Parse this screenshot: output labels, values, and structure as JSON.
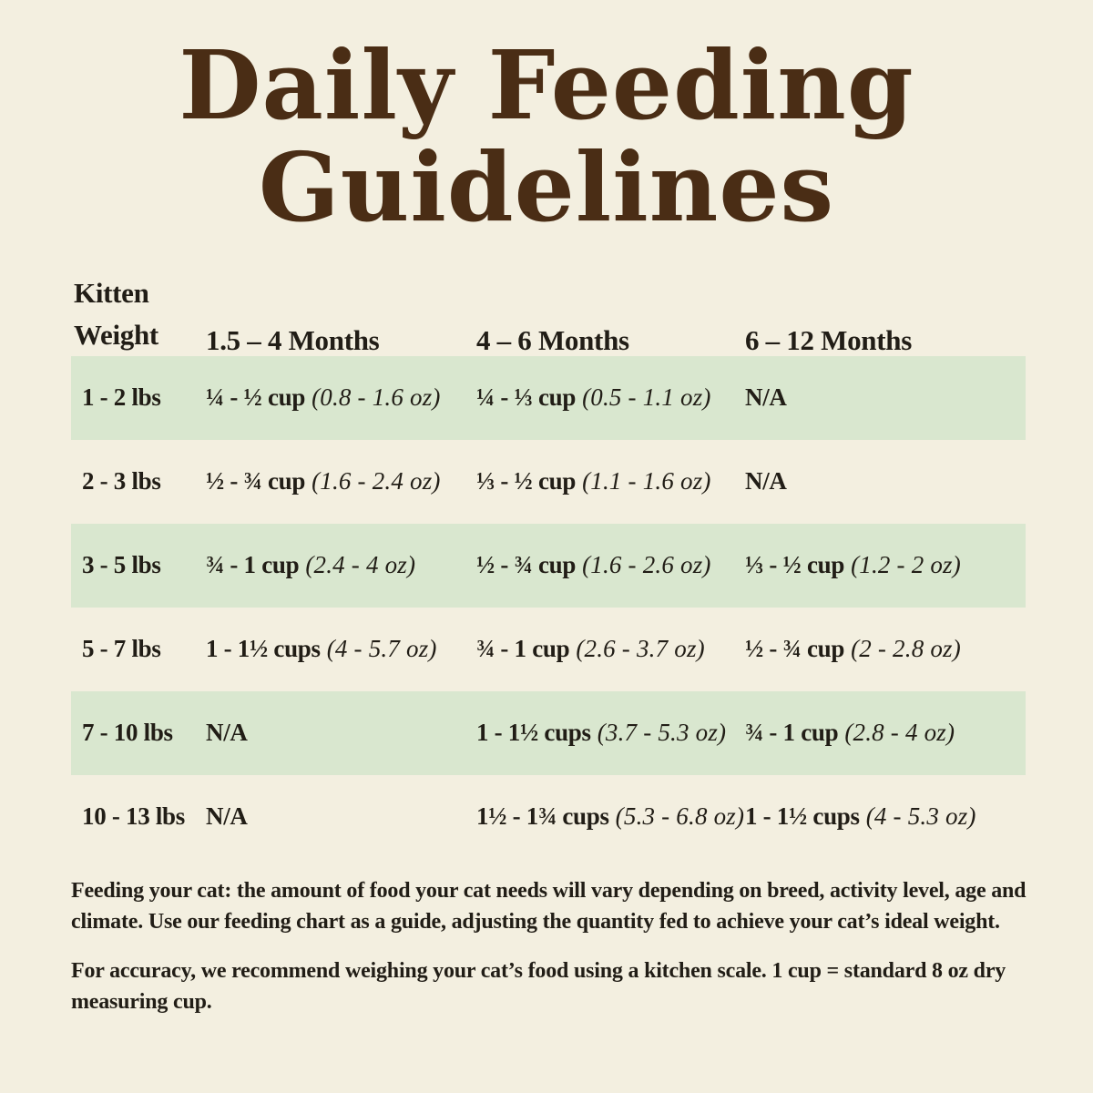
{
  "title": {
    "line1": "Daily Feeding",
    "line2": "Guidelines"
  },
  "table": {
    "header": {
      "weight_line1": "Kitten",
      "weight_line2": "Weight",
      "col2": "1.5 – 4 Months",
      "col3": "4 – 6 Months",
      "col4": "6 – 12 Months"
    },
    "rows": [
      {
        "weight": "1 - 2 lbs",
        "cols": [
          {
            "amount": "¼ - ½ cup",
            "oz": "(0.8 - 1.6 oz)"
          },
          {
            "amount": "¼ - ⅓ cup",
            "oz": "(0.5 - 1.1 oz)"
          },
          {
            "amount": "N/A",
            "oz": ""
          }
        ]
      },
      {
        "weight": "2 - 3 lbs",
        "cols": [
          {
            "amount": "½ - ¾ cup",
            "oz": "(1.6 - 2.4 oz)"
          },
          {
            "amount": "⅓ - ½ cup",
            "oz": "(1.1 - 1.6 oz)"
          },
          {
            "amount": "N/A",
            "oz": ""
          }
        ]
      },
      {
        "weight": "3 - 5 lbs",
        "cols": [
          {
            "amount": "¾ - 1 cup",
            "oz": "(2.4 - 4 oz)"
          },
          {
            "amount": "½ - ¾ cup",
            "oz": "(1.6 - 2.6 oz)"
          },
          {
            "amount": "⅓ - ½ cup",
            "oz": "(1.2 - 2 oz)"
          }
        ]
      },
      {
        "weight": "5 - 7 lbs",
        "cols": [
          {
            "amount": "1 - 1½ cups",
            "oz": "(4 - 5.7 oz)"
          },
          {
            "amount": "¾ - 1 cup",
            "oz": "(2.6 - 3.7 oz)"
          },
          {
            "amount": "½ - ¾ cup",
            "oz": "(2 - 2.8 oz)"
          }
        ]
      },
      {
        "weight": "7 - 10 lbs",
        "cols": [
          {
            "amount": "N/A",
            "oz": ""
          },
          {
            "amount": "1 - 1½ cups",
            "oz": "(3.7 - 5.3 oz)"
          },
          {
            "amount": "¾ - 1 cup",
            "oz": "(2.8 - 4 oz)"
          }
        ]
      },
      {
        "weight": "10 - 13 lbs",
        "cols": [
          {
            "amount": "N/A",
            "oz": ""
          },
          {
            "amount": "1½ - 1¾ cups",
            "oz": "(5.3 - 6.8 oz)"
          },
          {
            "amount": "1 - 1½ cups",
            "oz": "(4 - 5.3 oz)"
          }
        ]
      }
    ]
  },
  "notes": [
    "Feeding your cat: the amount of food your cat needs will vary depending on breed, activity level, age and climate. Use our feeding chart as a guide, adjusting the quantity fed to achieve your cat’s ideal weight.",
    "For accuracy, we recommend weighing your cat’s food using a kitchen scale. 1 cup = standard 8 oz dry measuring cup."
  ],
  "colors": {
    "background": "#f3efe0",
    "row_highlight": "#d9e7cf",
    "title_brown": "#4a2d15",
    "text": "#211d16"
  },
  "chart_data": {
    "type": "table",
    "title": "Daily Feeding Guidelines",
    "columns": [
      "Kitten Weight",
      "1.5 – 4 Months",
      "4 – 6 Months",
      "6 – 12 Months"
    ],
    "rows": [
      [
        "1 - 2 lbs",
        "¼ - ½ cup (0.8 - 1.6 oz)",
        "¼ - ⅓ cup (0.5 - 1.1 oz)",
        "N/A"
      ],
      [
        "2 - 3 lbs",
        "½ - ¾ cup (1.6 - 2.4 oz)",
        "⅓ - ½ cup (1.1 - 1.6 oz)",
        "N/A"
      ],
      [
        "3 - 5 lbs",
        "¾ - 1 cup (2.4 - 4 oz)",
        "½ - ¾ cup (1.6 - 2.6 oz)",
        "⅓ - ½ cup (1.2 - 2 oz)"
      ],
      [
        "5 - 7 lbs",
        "1 - 1½ cups (4 - 5.7 oz)",
        "¾ - 1 cup (2.6 - 3.7 oz)",
        "½ - ¾ cup (2 - 2.8 oz)"
      ],
      [
        "7 - 10 lbs",
        "N/A",
        "1 - 1½ cups (3.7 - 5.3 oz)",
        "¾ - 1 cup (2.8 - 4 oz)"
      ],
      [
        "10 - 13 lbs",
        "N/A",
        "1½ - 1¾ cups (5.3 - 6.8 oz)",
        "1 - 1½ cups (4 - 5.3 oz)"
      ]
    ],
    "highlighted_rows": [
      0,
      2,
      4
    ],
    "notes": [
      "Feeding your cat: the amount of food your cat needs will vary depending on breed, activity level, age and climate. Use our feeding chart as a guide, adjusting the quantity fed to achieve your cat’s ideal weight.",
      "For accuracy, we recommend weighing your cat’s food using a kitchen scale. 1 cup = standard 8 oz dry measuring cup."
    ]
  }
}
